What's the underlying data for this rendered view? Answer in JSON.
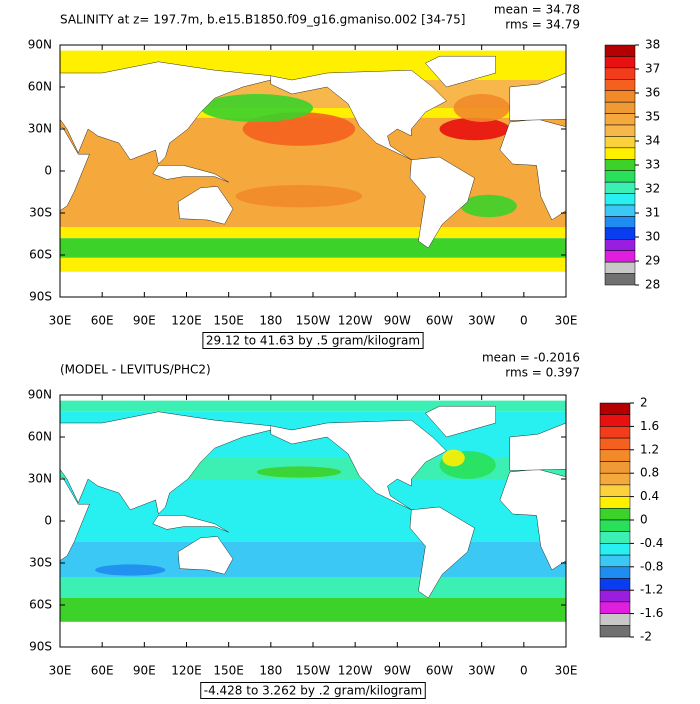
{
  "panels": [
    {
      "title": "SALINITY at z= 197.7m, b.e15.B1850.f09_g16.gmaniso.002 [34-75]",
      "mean": "mean = 34.78",
      "rms": "rms = 34.79",
      "lat_labels": [
        "90N",
        "60N",
        "30N",
        "0",
        "30S",
        "60S",
        "90S"
      ],
      "lon_labels": [
        "30E",
        "60E",
        "90E",
        "120E",
        "150E",
        "180",
        "150W",
        "120W",
        "90W",
        "60W",
        "30W",
        "0",
        "30E"
      ],
      "range": "29.12 to 41.63 by .5 gram/kilogram",
      "colorbar": {
        "ticks": [
          38,
          37,
          36,
          35,
          34,
          33,
          32,
          31,
          30,
          29,
          28
        ],
        "colors": [
          "#b40000",
          "#e81010",
          "#f33c1c",
          "#f5601e",
          "#f28a2a",
          "#f09a36",
          "#f5a83c",
          "#f7b74a",
          "#fbd23c",
          "#fff000",
          "#3cd22a",
          "#28e05a",
          "#3cf0b4",
          "#28f0f0",
          "#3cc8f5",
          "#1e8cf0",
          "#0a3cf0",
          "#9a1ee0",
          "#e01ee0",
          "#c8c8c8",
          "#707070"
        ]
      }
    },
    {
      "title": "(MODEL - LEVITUS/PHC2)",
      "mean": "mean = -0.2016",
      "rms": "rms = 0.397",
      "lat_labels": [
        "90N",
        "60N",
        "30N",
        "0",
        "30S",
        "60S",
        "90S"
      ],
      "lon_labels": [
        "30E",
        "60E",
        "90E",
        "120E",
        "150E",
        "180",
        "150W",
        "120W",
        "90W",
        "60W",
        "30W",
        "0",
        "30E"
      ],
      "range": "-4.428 to 3.262 by .2 gram/kilogram",
      "colorbar": {
        "ticks": [
          2,
          1.6,
          1.2,
          0.8,
          0.4,
          0,
          -0.4,
          -0.8,
          -1.2,
          -1.6,
          -2
        ],
        "colors": [
          "#b40000",
          "#e81010",
          "#f33c1c",
          "#f5601e",
          "#f28a2a",
          "#f09a36",
          "#f5a83c",
          "#fbd23c",
          "#fff000",
          "#3cd22a",
          "#28e05a",
          "#3cf0b4",
          "#28f0f0",
          "#3cc8f5",
          "#1e8cf0",
          "#0a3cf0",
          "#9a1ee0",
          "#e01ee0",
          "#c8c8c8",
          "#707070"
        ]
      }
    }
  ]
}
